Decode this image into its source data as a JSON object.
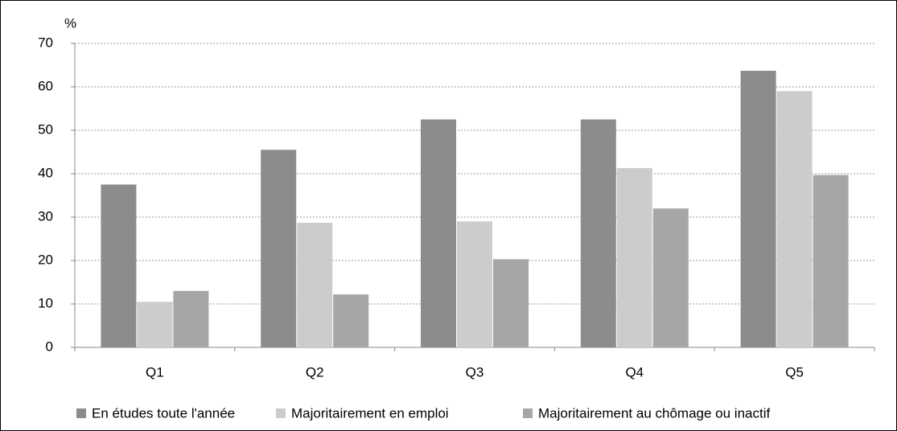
{
  "chart_data": {
    "type": "bar",
    "y_label": "%",
    "categories": [
      "Q1",
      "Q2",
      "Q3",
      "Q4",
      "Q5"
    ],
    "series": [
      {
        "name": "En études toute l'année",
        "color": "#8c8c8c",
        "values": [
          37.5,
          45.5,
          52.5,
          52.5,
          63.7
        ]
      },
      {
        "name": "Majoritairement en emploi",
        "color": "#cccccc",
        "values": [
          10.5,
          28.7,
          29,
          41.3,
          59
        ]
      },
      {
        "name": "Majoritairement au chômage ou inactif",
        "color": "#a6a6a6",
        "values": [
          13,
          12.2,
          20.3,
          32,
          39.7
        ]
      }
    ],
    "ylim": [
      0,
      70
    ],
    "yticks": [
      0,
      10,
      20,
      30,
      40,
      50,
      60,
      70
    ],
    "grid": true
  }
}
